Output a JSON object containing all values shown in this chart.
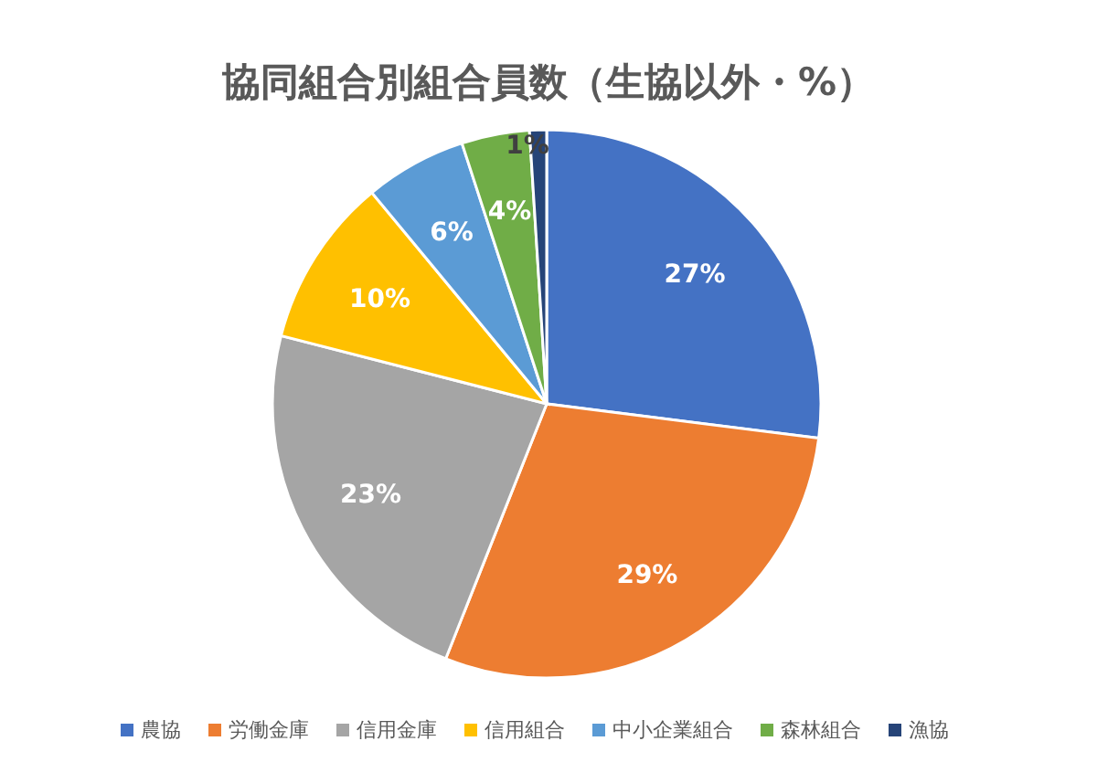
{
  "chart_data": {
    "type": "pie",
    "title": "協同組合別組合員数（生協以外・%）",
    "categories": [
      "農協",
      "労働金庫",
      "信用金庫",
      "信用組合",
      "中小企業組合",
      "森林組合",
      "漁協"
    ],
    "values": [
      27,
      29,
      23,
      10,
      6,
      4,
      1
    ],
    "colors": [
      "#4472c4",
      "#ed7d31",
      "#a5a5a5",
      "#ffc000",
      "#5b9bd5",
      "#70ad47",
      "#264478"
    ],
    "value_labels": [
      "27%",
      "29%",
      "23%",
      "10%",
      "6%",
      "4%",
      "1%"
    ],
    "legend": "bottom"
  }
}
